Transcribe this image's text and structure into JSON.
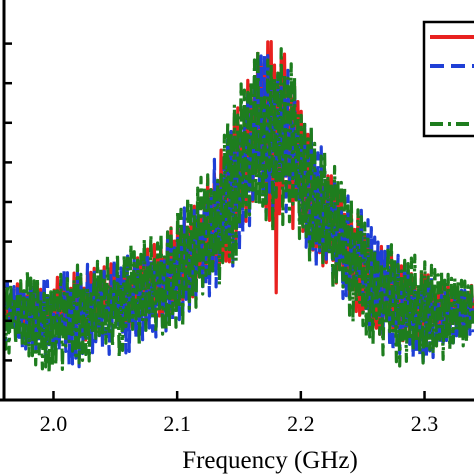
{
  "chart_data": {
    "type": "line",
    "title": "",
    "xlabel": "Frequency (GHz)",
    "ylabel": "",
    "xlim": [
      1.96,
      2.34
    ],
    "ylim": [
      0,
      1
    ],
    "x_ticks": [
      2.0,
      2.1,
      2.2,
      2.3
    ],
    "x_tick_labels": [
      "2.0",
      "2.1",
      "2.2",
      "2.3"
    ],
    "y_ticks": [
      0.1,
      0.2,
      0.3,
      0.4,
      0.5,
      0.6,
      0.7,
      0.8,
      0.9
    ],
    "grid": false,
    "legend": {
      "position": "top-right",
      "entries_text_visible": false
    },
    "series": [
      {
        "color": "#e8211f",
        "dash": "solid",
        "x": [
          1.96,
          1.98,
          2.0,
          2.02,
          2.04,
          2.06,
          2.08,
          2.1,
          2.12,
          2.14,
          2.15,
          2.16,
          2.165,
          2.17,
          2.175,
          2.18,
          2.185,
          2.19,
          2.2,
          2.22,
          2.24,
          2.26,
          2.28,
          2.3,
          2.32,
          2.34
        ],
        "upper": [
          0.29,
          0.31,
          0.32,
          0.33,
          0.34,
          0.36,
          0.39,
          0.45,
          0.54,
          0.66,
          0.76,
          0.88,
          0.92,
          0.9,
          0.91,
          0.92,
          0.9,
          0.86,
          0.74,
          0.6,
          0.5,
          0.42,
          0.36,
          0.32,
          0.3,
          0.29
        ],
        "lower": [
          0.15,
          0.14,
          0.12,
          0.14,
          0.15,
          0.17,
          0.19,
          0.22,
          0.27,
          0.33,
          0.38,
          0.45,
          0.5,
          0.5,
          0.42,
          0.19,
          0.42,
          0.45,
          0.4,
          0.32,
          0.24,
          0.17,
          0.14,
          0.14,
          0.15,
          0.18
        ]
      },
      {
        "color": "#1f3fd6",
        "dash": "dashed",
        "x": [
          1.96,
          1.98,
          2.0,
          2.02,
          2.04,
          2.06,
          2.08,
          2.1,
          2.12,
          2.14,
          2.15,
          2.16,
          2.165,
          2.17,
          2.175,
          2.18,
          2.185,
          2.19,
          2.2,
          2.22,
          2.24,
          2.26,
          2.28,
          2.3,
          2.32,
          2.34
        ],
        "upper": [
          0.3,
          0.32,
          0.33,
          0.34,
          0.35,
          0.37,
          0.4,
          0.46,
          0.56,
          0.68,
          0.78,
          0.87,
          0.9,
          0.89,
          0.9,
          0.91,
          0.89,
          0.86,
          0.76,
          0.62,
          0.52,
          0.44,
          0.38,
          0.33,
          0.3,
          0.29
        ],
        "lower": [
          0.14,
          0.12,
          0.1,
          0.08,
          0.1,
          0.12,
          0.15,
          0.18,
          0.23,
          0.3,
          0.36,
          0.43,
          0.47,
          0.46,
          0.44,
          0.42,
          0.44,
          0.43,
          0.39,
          0.3,
          0.22,
          0.15,
          0.1,
          0.08,
          0.12,
          0.16
        ]
      },
      {
        "color": "#1e7d1e",
        "dash": "dash-dot",
        "x": [
          1.96,
          1.98,
          2.0,
          2.02,
          2.04,
          2.06,
          2.08,
          2.1,
          2.12,
          2.14,
          2.15,
          2.16,
          2.165,
          2.17,
          2.175,
          2.18,
          2.185,
          2.19,
          2.2,
          2.22,
          2.24,
          2.26,
          2.28,
          2.3,
          2.32,
          2.34
        ],
        "upper": [
          0.31,
          0.33,
          0.35,
          0.35,
          0.36,
          0.39,
          0.42,
          0.48,
          0.58,
          0.7,
          0.8,
          0.9,
          0.92,
          0.9,
          0.92,
          0.91,
          0.9,
          0.88,
          0.78,
          0.64,
          0.54,
          0.45,
          0.39,
          0.35,
          0.32,
          0.3
        ],
        "lower": [
          0.12,
          0.1,
          0.06,
          0.08,
          0.09,
          0.11,
          0.14,
          0.17,
          0.22,
          0.29,
          0.35,
          0.42,
          0.46,
          0.45,
          0.43,
          0.41,
          0.43,
          0.42,
          0.37,
          0.28,
          0.2,
          0.12,
          0.07,
          0.07,
          0.11,
          0.15
        ]
      }
    ]
  }
}
